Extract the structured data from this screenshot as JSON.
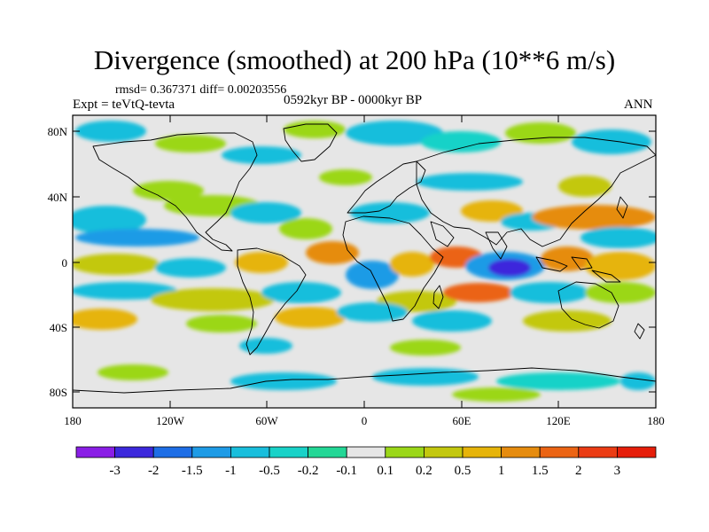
{
  "title": "Divergence (smoothed) at 200 hPa (10**6 m/s)",
  "stats": "rmsd= 0.367371 diff= 0.00203556",
  "experiment": "Expt = teVtQ-tevta",
  "period": "0592kyr BP - 0000kyr BP",
  "season": "ANN",
  "map": {
    "lat_ticks": [
      "80N",
      "40N",
      "0",
      "40S",
      "80S"
    ],
    "lon_ticks": [
      "180",
      "120W",
      "60W",
      "0",
      "60E",
      "120E",
      "180"
    ]
  },
  "colorbar": {
    "labels": [
      "-3",
      "-2",
      "-1.5",
      "-1",
      "-0.5",
      "-0.2",
      "-0.1",
      "0.1",
      "0.2",
      "0.5",
      "1",
      "1.5",
      "2",
      "3"
    ],
    "colors": [
      "#8a1ee6",
      "#3c28dc",
      "#1e6ee6",
      "#1e9be6",
      "#19bedc",
      "#19d2c8",
      "#23d796",
      "#e6e6e6",
      "#9bd719",
      "#c3c80f",
      "#e6b40a",
      "#e68c0f",
      "#eb6414",
      "#eb3c14",
      "#e61e0a"
    ]
  }
}
